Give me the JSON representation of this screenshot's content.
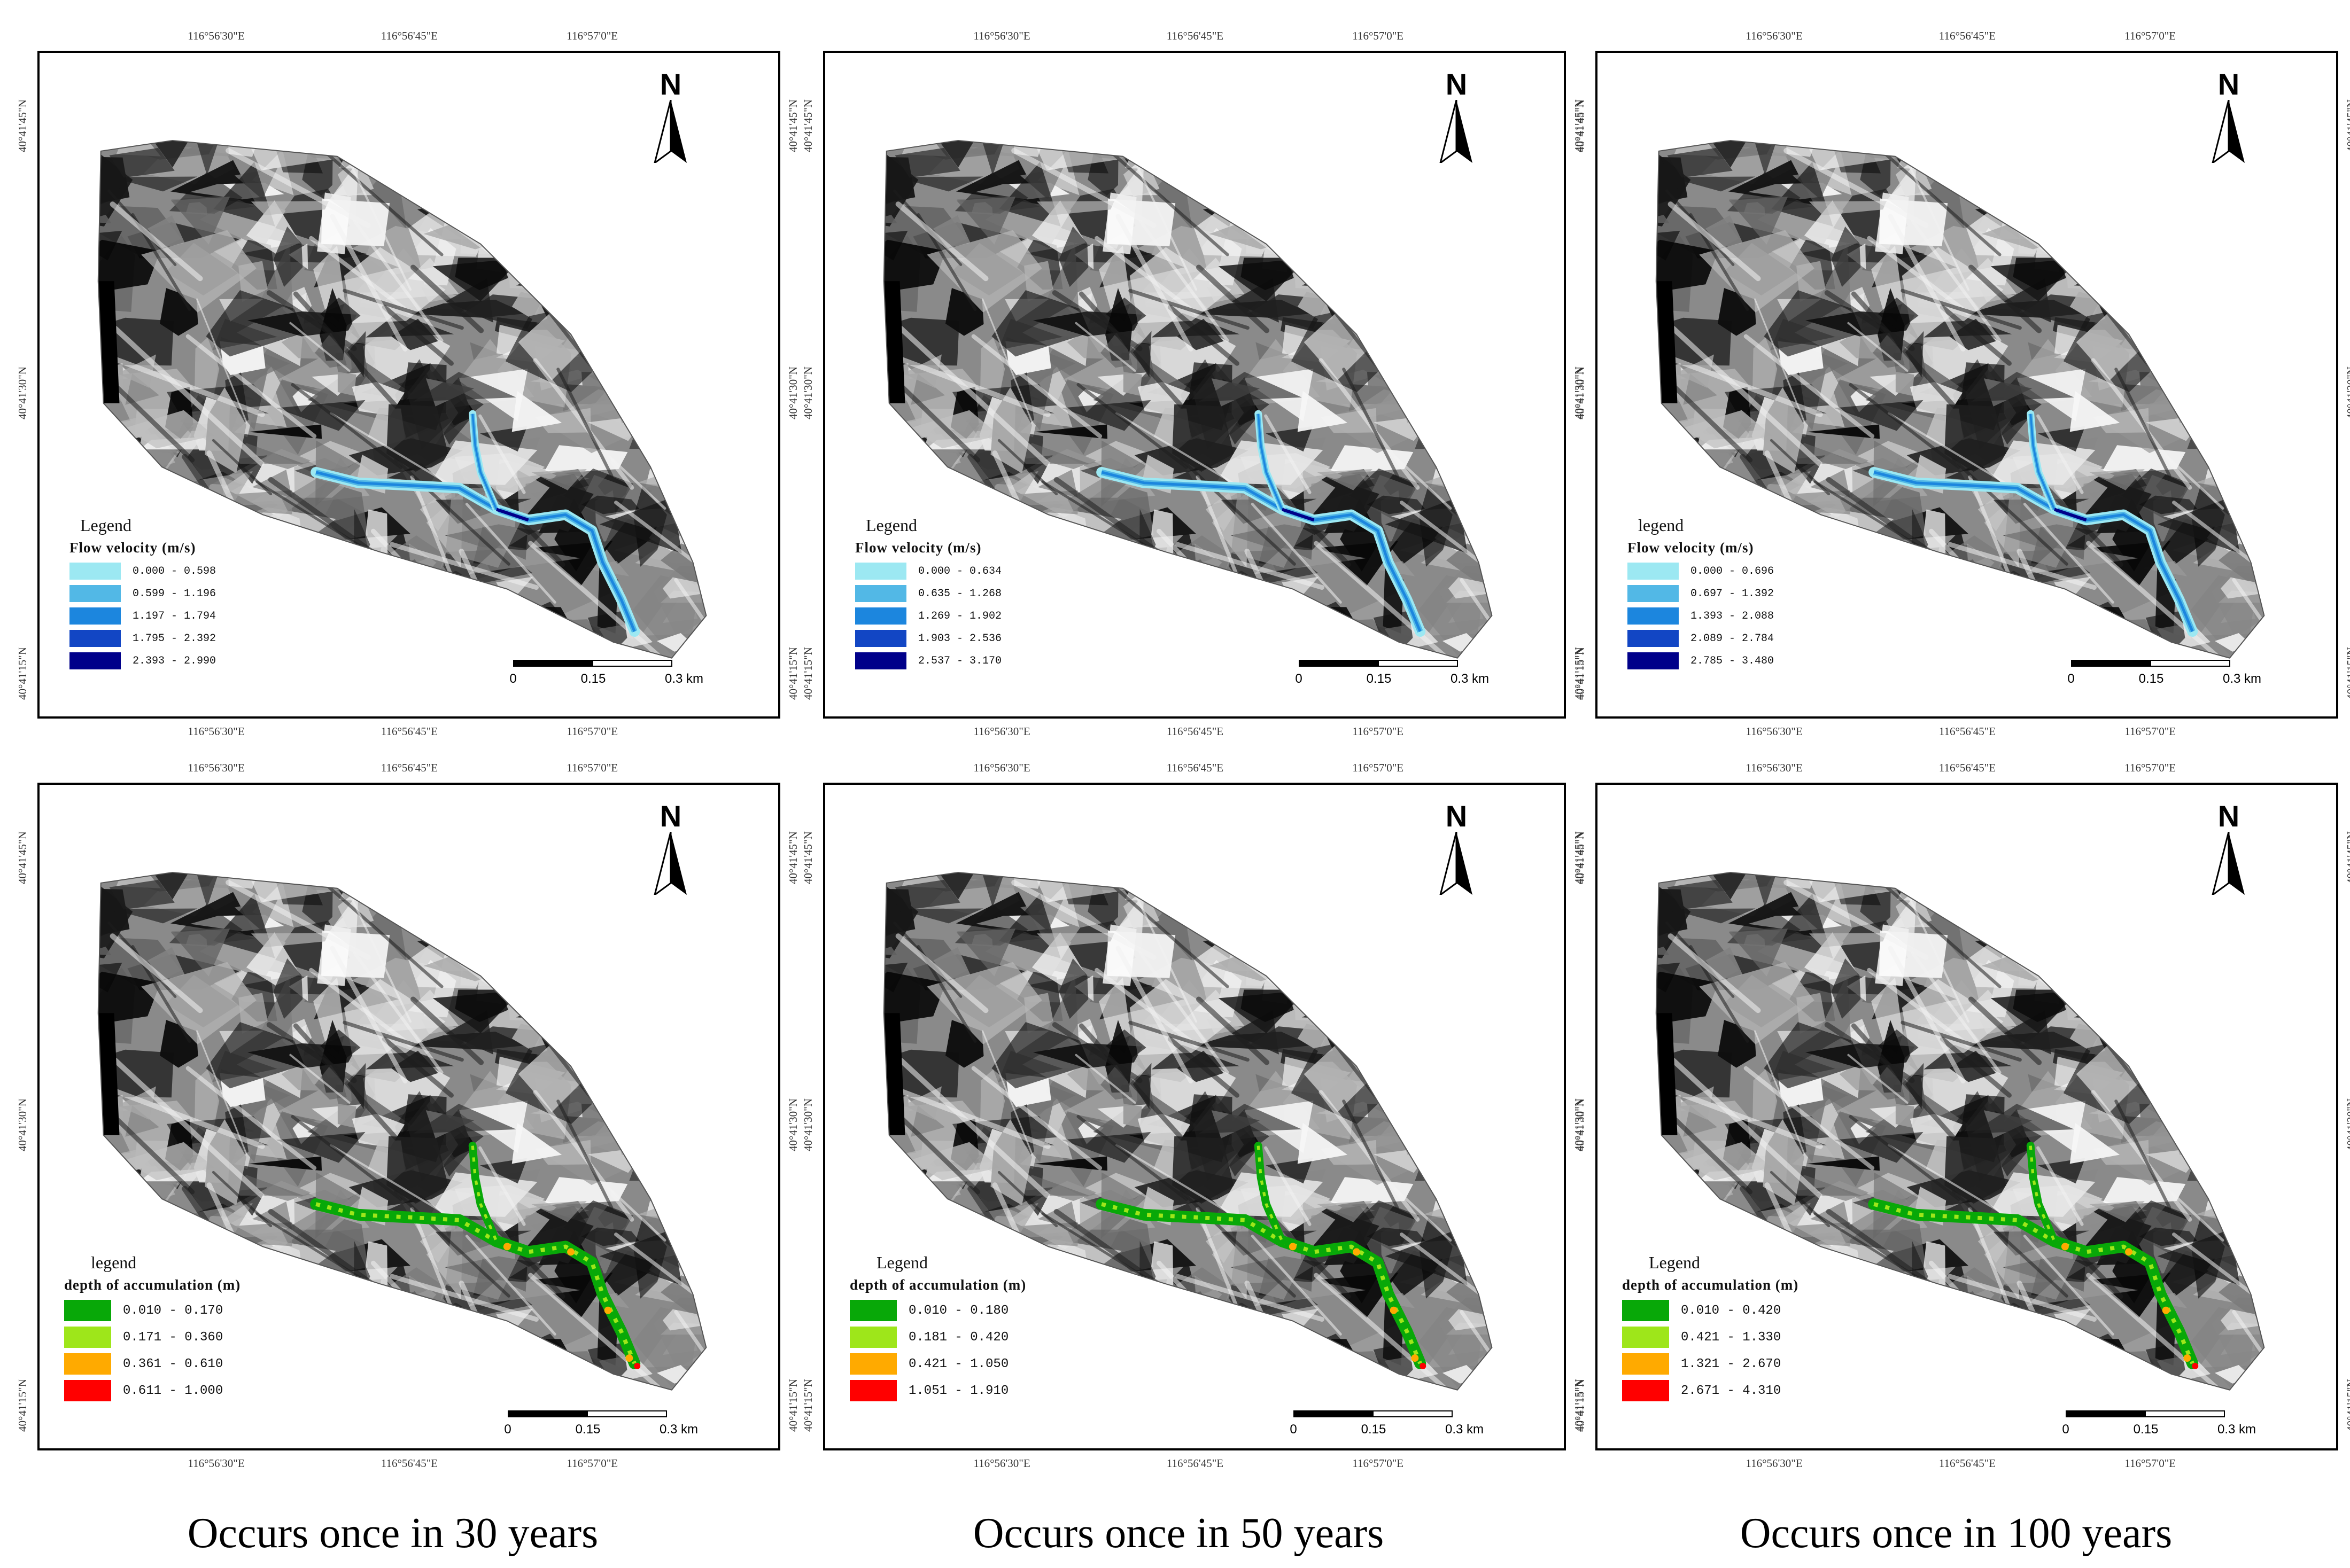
{
  "icons": {
    "north_arrow": "north-arrow-icon"
  },
  "colors": {
    "velocity": [
      "#9ce8f2",
      "#52b8e6",
      "#1c86de",
      "#1246c4",
      "#00008a"
    ],
    "depth": [
      "#08a808",
      "#9ee61a",
      "#ffaa00",
      "#ff0000"
    ]
  },
  "columns": [
    {
      "caption": "Occurs once in 30 years",
      "velocity": {
        "longitudes": [
          "116°56'30\"E",
          "116°56'45\"E",
          "116°57'0\"E"
        ],
        "latitudes": [
          "40°41'45\"N",
          "40°41'30\"N",
          "40°41'15\"N"
        ],
        "north": "N",
        "legend_title": "Legend",
        "legend_subtitle": "Flow velocity (m/s)",
        "classes": [
          "0.000 - 0.598",
          "0.599 - 1.196",
          "1.197 - 1.794",
          "1.795 - 2.392",
          "2.393 - 2.990"
        ],
        "scale": [
          "0",
          "0.15",
          "0.3 km"
        ]
      },
      "depth": {
        "longitudes": [
          "116°56'30\"E",
          "116°56'45\"E",
          "116°57'0\"E"
        ],
        "latitudes": [
          "40°41'45\"N",
          "40°41'30\"N",
          "40°41'15\"N"
        ],
        "north": "N",
        "legend_title": "legend",
        "legend_subtitle": "depth of accumulation (m)",
        "classes": [
          "0.010 - 0.170",
          "0.171 - 0.360",
          "0.361 - 0.610",
          "0.611 - 1.000"
        ],
        "scale": [
          "0",
          "0.15",
          "0.3 km"
        ]
      }
    },
    {
      "caption": "Occurs once in 50 years",
      "velocity": {
        "longitudes": [
          "116°56'30\"E",
          "116°56'45\"E",
          "116°57'0\"E"
        ],
        "latitudes": [
          "40°41'45\"N",
          "40°41'30\"N",
          "40°41'15\"N"
        ],
        "north": "N",
        "legend_title": "Legend",
        "legend_subtitle": "Flow velocity (m/s)",
        "classes": [
          "0.000 - 0.634",
          "0.635 - 1.268",
          "1.269 - 1.902",
          "1.903 - 2.536",
          "2.537 - 3.170"
        ],
        "scale": [
          "0",
          "0.15",
          "0.3 km"
        ]
      },
      "depth": {
        "longitudes": [
          "116°56'30\"E",
          "116°56'45\"E",
          "116°57'0\"E"
        ],
        "latitudes": [
          "40°41'45\"N",
          "40°41'30\"N",
          "40°41'15\"N"
        ],
        "north": "N",
        "legend_title": "Legend",
        "legend_subtitle": "depth of accumulation (m)",
        "classes": [
          "0.010 - 0.180",
          "0.181 - 0.420",
          "0.421 - 1.050",
          "1.051 - 1.910"
        ],
        "scale": [
          "0",
          "0.15",
          "0.3 km"
        ]
      }
    },
    {
      "caption": "Occurs once in 100 years",
      "velocity": {
        "longitudes": [
          "116°56'30\"E",
          "116°56'45\"E",
          "116°57'0\"E"
        ],
        "latitudes": [
          "40°41'45\"N",
          "40°41'30\"N",
          "40°41'15\"N"
        ],
        "north": "N",
        "legend_title": "legend",
        "legend_subtitle": "Flow velocity (m/s)",
        "classes": [
          "0.000 - 0.696",
          "0.697 - 1.392",
          "1.393 - 2.088",
          "2.089 - 2.784",
          "2.785 - 3.480"
        ],
        "scale": [
          "0",
          "0.15",
          "0.3 km"
        ]
      },
      "depth": {
        "longitudes": [
          "116°56'30\"E",
          "116°56'45\"E",
          "116°57'0\"E"
        ],
        "latitudes": [
          "40°41'45\"N",
          "40°41'30\"N",
          "40°41'15\"N"
        ],
        "north": "N",
        "legend_title": "Legend",
        "legend_subtitle": "depth of accumulation (m)",
        "classes": [
          "0.010 - 0.420",
          "0.421 - 1.330",
          "1.321 - 2.670",
          "2.671 - 4.310"
        ],
        "scale": [
          "0",
          "0.15",
          "0.3 km"
        ]
      }
    }
  ]
}
